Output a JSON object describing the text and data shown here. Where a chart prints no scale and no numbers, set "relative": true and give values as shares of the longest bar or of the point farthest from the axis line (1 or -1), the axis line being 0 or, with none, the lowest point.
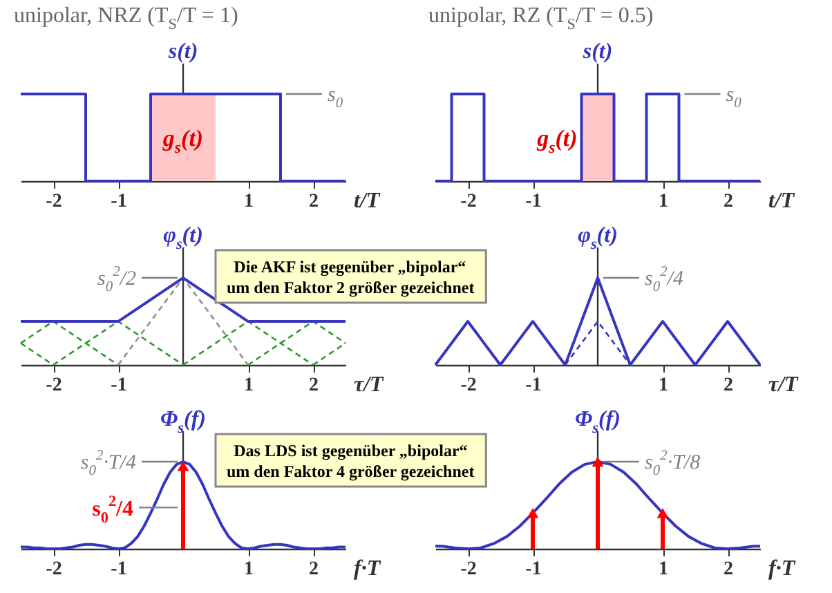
{
  "chart_data": [
    {
      "type": "line",
      "title": "unipolar, NRZ (T$_{S}$/T = 1)",
      "xlabel": "t/T",
      "ylabel": "s(t)",
      "relative": true,
      "xlim": [
        -2.5,
        2.5
      ],
      "xticks": [
        -2,
        -1,
        1,
        2
      ],
      "series": [
        {
          "color": "#3535c0",
          "x": [
            -2.5,
            -1.5,
            -1.5,
            -0.5,
            -0.5,
            1.5,
            1.5,
            2.5
          ],
          "values": [
            1,
            1,
            0,
            0,
            1,
            1,
            0,
            0
          ]
        }
      ],
      "bands": [
        {
          "axis": "x",
          "from": -0.5,
          "to": 0.5,
          "label": "g$_{s}$(t)",
          "color": "#ffc8c8"
        }
      ],
      "annotations": [
        {
          "text": "s$_{0}$",
          "x": 1.5,
          "y": 1
        }
      ]
    },
    {
      "type": "line",
      "title": "unipolar, RZ (T$_{S}$/T = 0.5)",
      "xlabel": "t/T",
      "ylabel": "s(t)",
      "relative": true,
      "xlim": [
        -2.5,
        2.5
      ],
      "xticks": [
        -2,
        -1,
        1,
        2
      ],
      "series": [
        {
          "color": "#3535c0",
          "x": [
            -2.5,
            -2.25,
            -2.25,
            -1.75,
            -1.75,
            -0.25,
            -0.25,
            0.25,
            0.25,
            0.75,
            0.75,
            1.25,
            1.25,
            2.5
          ],
          "values": [
            0,
            0,
            1,
            1,
            0,
            0,
            1,
            1,
            0,
            0,
            1,
            1,
            0,
            0
          ]
        }
      ],
      "bands": [
        {
          "axis": "x",
          "from": -0.25,
          "to": 0.25,
          "label": "g$_{s}$(t)",
          "color": "#ffc8c8"
        }
      ],
      "annotations": [
        {
          "text": "s$_{0}$",
          "x": 1.25,
          "y": 1
        }
      ]
    },
    {
      "type": "line",
      "xlabel": "τ/T",
      "ylabel": "φ$_{s}$(t)",
      "relative": true,
      "xlim": [
        -2.5,
        2.5
      ],
      "xticks": [
        -2,
        -1,
        1,
        2
      ],
      "series": [
        {
          "color": "#2a9a2a",
          "line_style": "dashed",
          "x": [
            -2.5,
            -2
          ],
          "values": [
            0.25,
            0
          ]
        },
        {
          "color": "#2a9a2a",
          "line_style": "dashed",
          "x": [
            -2.5,
            -2,
            -1
          ],
          "values": [
            0.25,
            0.5,
            0
          ]
        },
        {
          "color": "#2a9a2a",
          "line_style": "dashed",
          "x": [
            -2,
            -1,
            0
          ],
          "values": [
            0,
            0.5,
            0
          ]
        },
        {
          "color": "#2a9a2a",
          "line_style": "dashed",
          "x": [
            0,
            1,
            2
          ],
          "values": [
            0,
            0.5,
            0
          ]
        },
        {
          "color": "#2a9a2a",
          "line_style": "dashed",
          "x": [
            1,
            2,
            2.5
          ],
          "values": [
            0,
            0.5,
            0.25
          ]
        },
        {
          "color": "#2a9a2a",
          "line_style": "dashed",
          "x": [
            2,
            2.5
          ],
          "values": [
            0,
            0.25
          ]
        },
        {
          "color": "#909090",
          "line_style": "dashed",
          "x": [
            -1,
            0,
            1
          ],
          "values": [
            0,
            1,
            0
          ]
        },
        {
          "color": "#3535c0",
          "x": [
            -2.5,
            -1,
            0,
            1,
            2.5
          ],
          "values": [
            0.5,
            0.5,
            1,
            0.5,
            0.5
          ]
        }
      ],
      "annotations": [
        {
          "text": "s$_{0}$$^{2}$/2",
          "x": 0,
          "y": 1
        },
        "Die AKF ist gegenüber „bipolar“\num den Faktor 2 größer gezeichnet"
      ]
    },
    {
      "type": "line",
      "xlabel": "τ/T",
      "ylabel": "φ$_{s}$(t)",
      "relative": true,
      "xlim": [
        -2.5,
        2.5
      ],
      "xticks": [
        -2,
        -1,
        1,
        2
      ],
      "series": [
        {
          "color": "#3535c0",
          "line_style": "dashed",
          "x": [
            -0.5,
            0,
            0.5
          ],
          "values": [
            0,
            0.5,
            0
          ]
        },
        {
          "color": "#3535c0",
          "x": [
            -2.5,
            -2,
            -1.5,
            -1,
            -0.5,
            0,
            0.5,
            1,
            1.5,
            2,
            2.5
          ],
          "values": [
            0,
            0.5,
            0,
            0.5,
            0,
            1,
            0,
            0.5,
            0,
            0.5,
            0
          ]
        }
      ],
      "annotations": [
        {
          "text": "s$_{0}$$^{2}$/4",
          "x": 0,
          "y": 1
        }
      ]
    },
    {
      "type": "line",
      "xlabel": "f·T",
      "ylabel": "Φ$_{s}$(f)",
      "relative": true,
      "xlim": [
        -2.5,
        2.5
      ],
      "xticks": [
        -2,
        -1,
        1,
        2
      ],
      "series": [
        {
          "color": "#3535c0",
          "x": [
            -2.5,
            -2.4,
            -2.3,
            -2.2,
            -2.1,
            -2,
            -1.9,
            -1.8,
            -1.7,
            -1.6,
            -1.5,
            -1.4,
            -1.3,
            -1.2,
            -1.1,
            -1,
            -0.9,
            -0.8,
            -0.7,
            -0.6,
            -0.5,
            -0.4,
            -0.3,
            -0.2,
            -0.1,
            0,
            0.1,
            0.2,
            0.3,
            0.4,
            0.5,
            0.6,
            0.7,
            0.8,
            0.9,
            1,
            1.1,
            1.2,
            1.3,
            1.4,
            1.5,
            1.6,
            1.7,
            1.8,
            1.9,
            2,
            2.1,
            2.2,
            2.3,
            2.4,
            2.5
          ],
          "values": [
            0.02,
            0.02,
            0.01,
            0.01,
            0,
            0,
            0,
            0.01,
            0.02,
            0.04,
            0.05,
            0.05,
            0.04,
            0.03,
            0.01,
            0,
            0.01,
            0.06,
            0.14,
            0.26,
            0.41,
            0.57,
            0.74,
            0.88,
            0.97,
            1,
            0.97,
            0.88,
            0.74,
            0.57,
            0.41,
            0.26,
            0.14,
            0.06,
            0.01,
            0,
            0.01,
            0.03,
            0.04,
            0.05,
            0.05,
            0.04,
            0.02,
            0.01,
            0,
            0,
            0,
            0.01,
            0.01,
            0.02,
            0.02
          ]
        },
        {
          "type": "lollipop",
          "marker": "triangle",
          "name": "s$_{0}$$^{2}$/4",
          "color": "#ff0000",
          "x": [
            0
          ],
          "values": [
            0.95
          ]
        }
      ],
      "annotations": [
        {
          "text": "s$_{0}$$^{2}$·T/4",
          "x": 0,
          "y": 1
        },
        "Das LDS ist gegenüber „bipolar“\num den Faktor 4 größer gezeichnet"
      ]
    },
    {
      "type": "line",
      "xlabel": "f·T",
      "ylabel": "Φ$_{s}$(f)",
      "relative": true,
      "xlim": [
        -2.5,
        2.5
      ],
      "xticks": [
        -2,
        -1,
        1,
        2
      ],
      "series": [
        {
          "color": "#3535c0",
          "x": [
            -2.5,
            -2.4,
            -2.2,
            -2,
            -1.8,
            -1.6,
            -1.4,
            -1.2,
            -1,
            -0.8,
            -0.6,
            -0.4,
            -0.2,
            0,
            0.2,
            0.4,
            0.6,
            0.8,
            1,
            1.2,
            1.4,
            1.6,
            1.8,
            2,
            2.2,
            2.4,
            2.5
          ],
          "values": [
            0.03,
            0.03,
            0.01,
            0,
            0.01,
            0.06,
            0.14,
            0.26,
            0.41,
            0.57,
            0.74,
            0.88,
            0.97,
            1,
            0.97,
            0.88,
            0.74,
            0.57,
            0.41,
            0.26,
            0.14,
            0.06,
            0.01,
            0,
            0.01,
            0.03,
            0.03
          ]
        },
        {
          "type": "lollipop",
          "marker": "triangle",
          "color": "#ff0000",
          "x": [
            -1,
            0,
            1
          ],
          "values": [
            0.41,
            1,
            0.41
          ]
        }
      ],
      "annotations": [
        {
          "text": "s$_{0}$$^{2}$·T/8",
          "x": 0,
          "y": 1
        }
      ]
    }
  ]
}
